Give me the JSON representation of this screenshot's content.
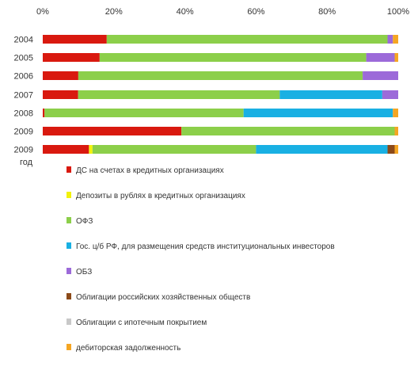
{
  "chart_data": {
    "type": "bar",
    "stacked": "percent",
    "orientation": "horizontal",
    "x_ticks": [
      "0%",
      "20%",
      "40%",
      "60%",
      "80%",
      "100%"
    ],
    "xlim": [
      0,
      100
    ],
    "categories": [
      "2004",
      "2005",
      "2006",
      "2007",
      "2008",
      "2009",
      "2009"
    ],
    "category_note": "год",
    "grid": false,
    "legend_position": "bottom",
    "series": [
      {
        "name": "ДС на счетах в кредитных организациях",
        "color": "#d9190f",
        "values": [
          18,
          16,
          10,
          10,
          0.5,
          39,
          13
        ]
      },
      {
        "name": "Депозиты в рублях в кредитных организациях",
        "color": "#f2f20a",
        "values": [
          0,
          0,
          0,
          0,
          0,
          0,
          1
        ]
      },
      {
        "name": "ОФЗ",
        "color": "#8ccf4a",
        "values": [
          79,
          75,
          80,
          57,
          56,
          60,
          46
        ]
      },
      {
        "name": "Гос. ц/б РФ, для размещения средств институциональных инвесторов",
        "color": "#19b0e3",
        "values": [
          0,
          0,
          0,
          29,
          42,
          0,
          37
        ]
      },
      {
        "name": "ОБЗ",
        "color": "#9c6ad9",
        "values": [
          1.5,
          8,
          10,
          4.5,
          0,
          0,
          0
        ]
      },
      {
        "name": "Облигации российских хозяйственных обществ",
        "color": "#8c4a19",
        "values": [
          0,
          0,
          0,
          0,
          0,
          0,
          2
        ]
      },
      {
        "name": "Облигации с ипотечным покрытием",
        "color": "#c8c8c8",
        "values": [
          0,
          0,
          0,
          0,
          0,
          0,
          0
        ]
      },
      {
        "name": "дебиторская задолженность",
        "color": "#f5a623",
        "values": [
          1.5,
          1,
          0,
          0,
          1.5,
          1,
          1
        ]
      }
    ]
  }
}
